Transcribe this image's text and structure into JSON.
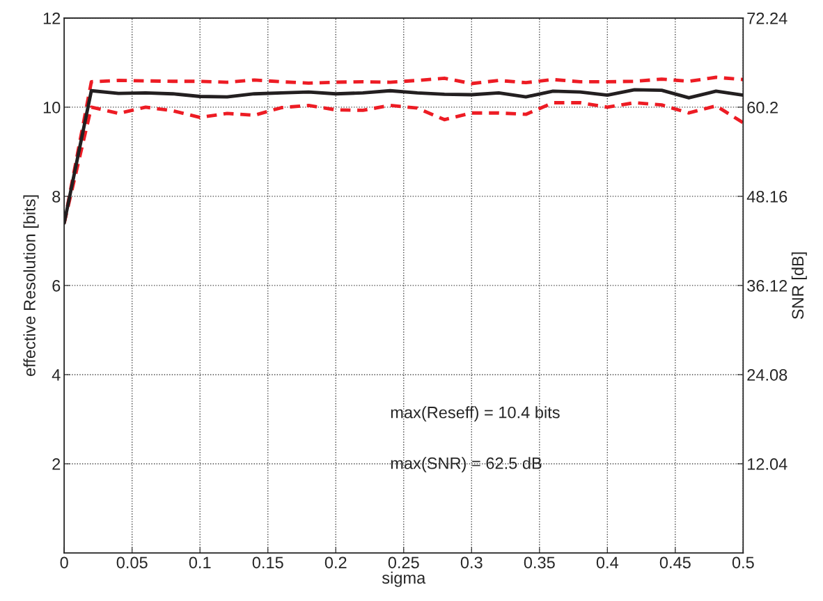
{
  "chart_data": {
    "type": "line",
    "xlabel": "sigma",
    "ylabel": "effective Resolution [bits]",
    "y2label": "SNR [dB]",
    "x": [
      0,
      0.02,
      0.04,
      0.06,
      0.08,
      0.1,
      0.12,
      0.14,
      0.16,
      0.18,
      0.2,
      0.22,
      0.24,
      0.26,
      0.28,
      0.3,
      0.32,
      0.34,
      0.36,
      0.38,
      0.4,
      0.42,
      0.44,
      0.46,
      0.48,
      0.5
    ],
    "series": [
      {
        "color": "#ed1c24",
        "line_style": "dashed",
        "values": [
          7.4,
          10.57,
          10.6,
          10.59,
          10.58,
          10.58,
          10.56,
          10.61,
          10.57,
          10.54,
          10.56,
          10.57,
          10.56,
          10.6,
          10.65,
          10.53,
          10.6,
          10.55,
          10.62,
          10.57,
          10.57,
          10.58,
          10.63,
          10.58,
          10.67,
          10.62
        ]
      },
      {
        "color": "#ed1c24",
        "line_style": "dashed",
        "values": [
          7.4,
          10.0,
          9.86,
          10.0,
          9.92,
          9.77,
          9.86,
          9.82,
          9.99,
          10.04,
          9.94,
          9.93,
          10.04,
          9.98,
          9.72,
          9.87,
          9.87,
          9.84,
          10.1,
          10.1,
          10.0,
          10.1,
          10.05,
          9.87,
          10.03,
          9.65
        ]
      },
      {
        "color": "#231f20",
        "line_style": "solid",
        "values": [
          7.4,
          10.37,
          10.31,
          10.32,
          10.3,
          10.24,
          10.23,
          10.3,
          10.32,
          10.34,
          10.3,
          10.32,
          10.37,
          10.32,
          10.29,
          10.28,
          10.32,
          10.23,
          10.36,
          10.34,
          10.27,
          10.39,
          10.38,
          10.21,
          10.36,
          10.27
        ]
      }
    ],
    "xlim": [
      0,
      0.5
    ],
    "xticks": [
      0,
      0.05,
      0.1,
      0.15,
      0.2,
      0.25,
      0.3,
      0.35,
      0.4,
      0.45,
      0.5
    ],
    "ylim": [
      0,
      12
    ],
    "yticks": [
      2,
      4,
      6,
      8,
      10,
      12
    ],
    "y2lim": [
      0,
      72.24
    ],
    "y2ticks": [
      12.04,
      24.08,
      36.12,
      48.16,
      60.2,
      72.24
    ],
    "grid": true,
    "marker": "none",
    "annotations": [
      "max(Reseff) = 10.4 bits",
      "max(SNR) = 62.5 dB"
    ]
  }
}
